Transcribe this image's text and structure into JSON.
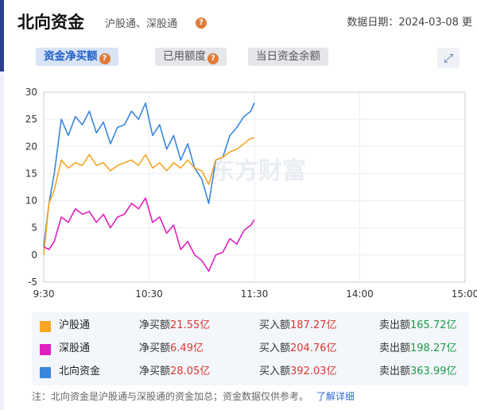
{
  "header": {
    "title": "北向资金",
    "subtitle": "沪股通、深股通",
    "help_glyph": "?",
    "date_text": "数据日期：2024-03-08 更"
  },
  "tabs": [
    {
      "label": "资金净买额",
      "active": true,
      "has_help": true
    },
    {
      "label": "已用额度",
      "active": false,
      "has_help": true
    },
    {
      "label": "当日资金余额",
      "active": false,
      "has_help": false
    }
  ],
  "expand_icon": "expand-arrows-icon",
  "watermark": "东方财富",
  "colors": {
    "hgt": "#f5a623",
    "sgt": "#e020c0",
    "north": "#3a86dc",
    "accent": "#1e5fc7",
    "up": "#d9382e",
    "down": "#1f9a47"
  },
  "chart_data": {
    "type": "line",
    "x_ticks": [
      "9:30",
      "10:30",
      "11:30",
      "14:00",
      "15:00"
    ],
    "y_ticks": [
      "30",
      "25",
      "20",
      "15",
      "10",
      "5",
      "0",
      "-5"
    ],
    "ylim": [
      -5,
      30
    ],
    "series": [
      {
        "name": "北向资金",
        "x": [
          "9:30",
          "9:33",
          "9:36",
          "9:40",
          "9:44",
          "9:48",
          "9:52",
          "9:56",
          "10:00",
          "10:04",
          "10:08",
          "10:12",
          "10:16",
          "10:20",
          "10:24",
          "10:28",
          "10:32",
          "10:36",
          "10:40",
          "10:44",
          "10:48",
          "10:52",
          "10:56",
          "11:00",
          "11:04",
          "11:08",
          "11:12",
          "11:16",
          "11:20",
          "11:24",
          "11:28",
          "11:30"
        ],
        "values": [
          1.5,
          9.5,
          15.0,
          25.0,
          22.0,
          25.5,
          24.0,
          26.5,
          22.5,
          24.5,
          20.5,
          23.5,
          24.0,
          26.5,
          25.0,
          28.0,
          22.0,
          24.0,
          19.5,
          22.0,
          17.5,
          20.5,
          16.0,
          14.0,
          9.5,
          17.5,
          18.0,
          22.0,
          23.5,
          25.5,
          26.5,
          28.05
        ]
      },
      {
        "name": "沪股通",
        "x": [
          "9:30",
          "9:33",
          "9:36",
          "9:40",
          "9:44",
          "9:48",
          "9:52",
          "9:56",
          "10:00",
          "10:04",
          "10:08",
          "10:12",
          "10:16",
          "10:20",
          "10:24",
          "10:28",
          "10:32",
          "10:36",
          "10:40",
          "10:44",
          "10:48",
          "10:52",
          "10:56",
          "11:00",
          "11:04",
          "11:08",
          "11:12",
          "11:16",
          "11:20",
          "11:24",
          "11:28",
          "11:30"
        ],
        "values": [
          0.0,
          9.5,
          12.0,
          17.5,
          16.0,
          17.0,
          16.5,
          18.5,
          16.5,
          17.0,
          15.5,
          16.5,
          17.0,
          17.5,
          16.5,
          18.5,
          16.0,
          17.0,
          15.5,
          17.0,
          16.0,
          17.5,
          16.0,
          15.5,
          13.0,
          17.5,
          18.0,
          19.0,
          19.5,
          20.5,
          21.5,
          21.55
        ]
      },
      {
        "name": "深股通",
        "x": [
          "9:30",
          "9:33",
          "9:36",
          "9:40",
          "9:44",
          "9:48",
          "9:52",
          "9:56",
          "10:00",
          "10:04",
          "10:08",
          "10:12",
          "10:16",
          "10:20",
          "10:24",
          "10:28",
          "10:32",
          "10:36",
          "10:40",
          "10:44",
          "10:48",
          "10:52",
          "10:56",
          "11:00",
          "11:04",
          "11:08",
          "11:12",
          "11:16",
          "11:20",
          "11:24",
          "11:28",
          "11:30"
        ],
        "values": [
          1.5,
          1.0,
          2.5,
          7.0,
          6.0,
          8.5,
          7.5,
          8.0,
          6.0,
          7.5,
          5.0,
          7.0,
          7.5,
          9.5,
          8.5,
          10.5,
          6.0,
          7.0,
          4.0,
          5.5,
          1.0,
          2.5,
          0.0,
          -1.0,
          -3.0,
          0.0,
          0.5,
          3.0,
          2.0,
          4.5,
          5.5,
          6.49
        ]
      }
    ]
  },
  "legend": [
    {
      "name": "沪股通",
      "color_key": "hgt",
      "net_label": "净买额",
      "net_value": "21.55亿",
      "buy_label": "买入额",
      "buy_value": "187.27亿",
      "sell_label": "卖出额",
      "sell_value": "165.72亿"
    },
    {
      "name": "深股通",
      "color_key": "sgt",
      "net_label": "净买额",
      "net_value": "6.49亿",
      "buy_label": "买入额",
      "buy_value": "204.76亿",
      "sell_label": "卖出额",
      "sell_value": "198.27亿"
    },
    {
      "name": "北向资金",
      "color_key": "north",
      "net_label": "净买额",
      "net_value": "28.05亿",
      "buy_label": "买入额",
      "buy_value": "392.03亿",
      "sell_label": "卖出额",
      "sell_value": "363.99亿"
    }
  ],
  "note": {
    "text": "注：北向资金是沪股通与深股通的资金加总；资金数据仅供参考。",
    "link": "了解详细"
  }
}
